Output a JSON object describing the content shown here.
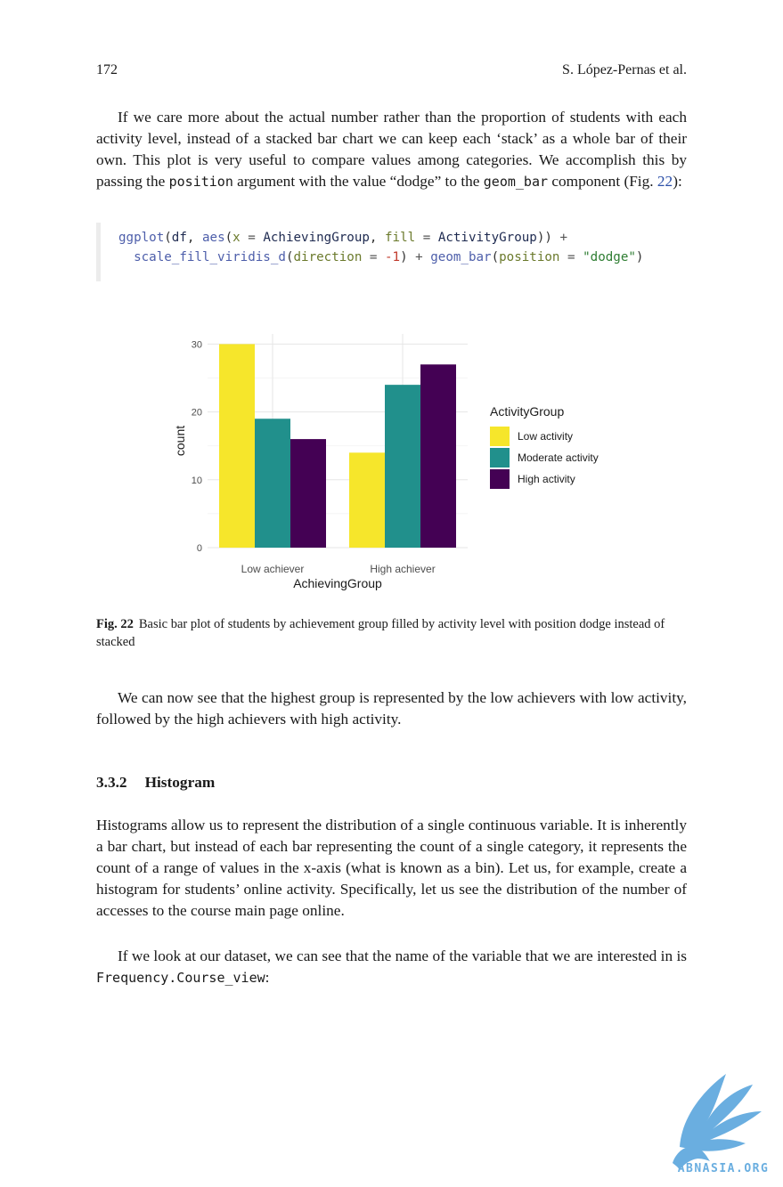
{
  "header": {
    "page_number": "172",
    "running_head": "S. López-Pernas et al."
  },
  "para1": {
    "text_a": "If we care more about the actual number rather than the proportion of students with each activity level, instead of a stacked bar chart we can keep each ‘stack’ as a whole bar of their own. This plot is very useful to compare values among categories. We accomplish this by passing the ",
    "code_a": "position",
    "text_b": " argument with the value “dodge” to the ",
    "code_b": "geom_bar",
    "text_c": " component (Fig. ",
    "fig_ref": "22",
    "text_d": "):"
  },
  "code": {
    "l1_fn": "ggplot",
    "l1_p1": "(",
    "l1_var1": "df",
    "l1_comma": ", ",
    "l1_fn2": "aes",
    "l1_p2": "(",
    "l1_arg1": "x",
    "l1_eq1": " = ",
    "l1_var2": "AchievingGroup",
    "l1_comma2": ", ",
    "l1_arg2": "fill",
    "l1_eq2": " = ",
    "l1_var3": "ActivityGroup",
    "l1_p3": ")) ",
    "l1_plus": "+",
    "l2_fn": "scale_fill_viridis_d",
    "l2_p1": "(",
    "l2_arg": "direction",
    "l2_eq": " = ",
    "l2_num": "-1",
    "l2_p2": ") ",
    "l2_plus": "+",
    "l2_fn2": " geom_bar",
    "l2_p3": "(",
    "l2_arg2": "position",
    "l2_eq2": " = ",
    "l2_str": "\"dodge\"",
    "l2_p4": ")"
  },
  "chart_data": {
    "type": "bar",
    "categories": [
      "Low achiever",
      "High achiever"
    ],
    "series": [
      {
        "name": "Low activity",
        "values": [
          30,
          14
        ],
        "color": "#F6E62B"
      },
      {
        "name": "Moderate activity",
        "values": [
          19,
          24
        ],
        "color": "#21908C"
      },
      {
        "name": "High activity",
        "values": [
          16,
          27
        ],
        "color": "#440154"
      }
    ],
    "xlabel": "AchievingGroup",
    "ylabel": "count",
    "ylim": [
      0,
      31.5
    ],
    "yticks": [
      0,
      10,
      20,
      30
    ],
    "legend_title": "ActivityGroup",
    "legend_position": "right",
    "grid": true
  },
  "caption": {
    "label": "Fig. 22",
    "text": "Basic bar plot of students by achievement group filled by activity level with position dodge instead of stacked"
  },
  "para2": "We can now see that the highest group is represented by the low achievers with low activity, followed by the high achievers with high activity.",
  "section": {
    "number": "3.3.2",
    "title": "Histogram"
  },
  "para3": "Histograms allow us to represent the distribution of a single continuous variable. It is inherently a bar chart, but instead of each bar representing the count of a single category, it represents the count of a range of values in the x-axis (what is known as a bin). Let us, for example, create a histogram for students’ online activity. Specifically, let us see the distribution of the number of accesses to the course main page online.",
  "para4": {
    "text_a": "If we look at our dataset, we can see that the name of the variable that we are interested in is ",
    "code": "Frequency.Course_view",
    "text_b": ":"
  },
  "watermark": {
    "text": "ABNASIA.ORG",
    "color": "#6aaee0"
  }
}
